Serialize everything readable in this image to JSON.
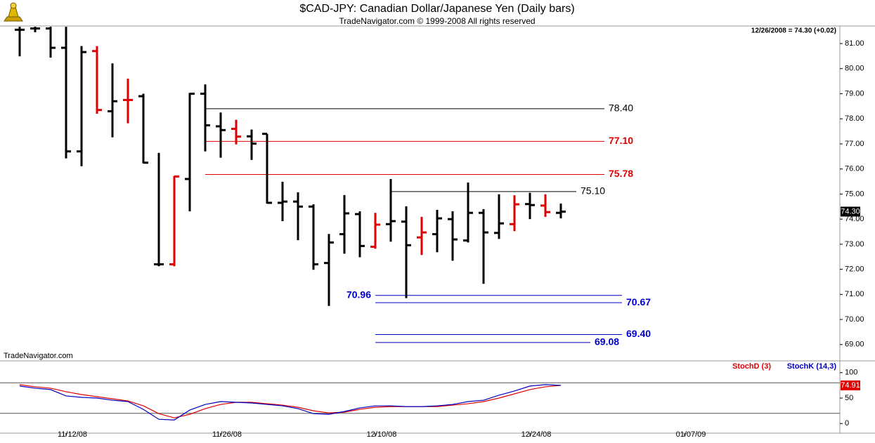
{
  "chart_data": [
    {
      "type": "ohlc",
      "title": "$CAD-JPY:  Canadian Dollar/Japanese Yen  (Daily bars)",
      "subtitle": "TradeNavigator.com © 1999-2008 All rights reserved",
      "watermark": "TradeNavigator.com",
      "status": "12/26/2008 = 74.30 (+0.02)",
      "open": [
        81.55,
        81.6,
        81.6,
        80.83,
        76.7,
        80.7,
        78.3,
        78.75,
        78.9,
        72.2,
        72.2,
        75.6,
        79.0,
        77.7,
        77.6,
        77.3,
        77.4,
        74.65,
        74.7,
        74.5,
        72.25,
        73.4,
        74.2,
        72.9,
        73.8,
        73.9,
        73.27,
        73.4,
        74.0,
        73.15,
        74.25,
        73.45,
        73.8,
        74.6,
        74.54,
        74.25,
        null,
        null,
        null,
        null,
        null,
        null,
        null,
        null,
        null
      ],
      "high": [
        81.67,
        81.67,
        81.67,
        81.67,
        80.9,
        80.9,
        80.21,
        79.6,
        79.0,
        76.64,
        75.72,
        79.03,
        79.37,
        78.25,
        77.96,
        77.57,
        77.4,
        75.49,
        75.07,
        74.59,
        73.41,
        74.96,
        74.31,
        74.25,
        75.6,
        74.51,
        74.09,
        74.37,
        74.31,
        75.46,
        74.4,
        74.99,
        74.95,
        75.05,
        74.99,
        74.62,
        null,
        null,
        null,
        null,
        null,
        null,
        null,
        null,
        null
      ],
      "low": [
        80.49,
        81.45,
        80.44,
        76.42,
        76.11,
        78.2,
        77.26,
        77.82,
        76.22,
        72.12,
        72.12,
        74.31,
        76.7,
        76.45,
        76.98,
        76.36,
        74.62,
        73.92,
        73.16,
        71.98,
        70.54,
        72.62,
        72.48,
        72.82,
        73.1,
        70.85,
        72.57,
        72.68,
        72.34,
        73.07,
        71.42,
        73.21,
        73.52,
        74.0,
        74.09,
        74.03,
        null,
        null,
        null,
        null,
        null,
        null,
        null,
        null,
        null
      ],
      "close": [
        81.55,
        81.6,
        80.83,
        76.7,
        80.66,
        78.35,
        78.7,
        78.75,
        76.25,
        72.2,
        75.7,
        79.0,
        77.74,
        77.55,
        77.29,
        77.01,
        74.65,
        74.7,
        74.5,
        72.2,
        73.07,
        74.23,
        72.93,
        73.78,
        73.92,
        72.96,
        73.47,
        74.03,
        73.19,
        74.25,
        73.47,
        73.83,
        74.59,
        74.56,
        74.28,
        74.3,
        null,
        null,
        null,
        null,
        null,
        null,
        null,
        null,
        null
      ],
      "colors": [
        "#000000",
        "#000000",
        "#000000",
        "#000000",
        "#000000",
        "#e00000",
        "#000000",
        "#e00000",
        "#000000",
        "#000000",
        "#e00000",
        "#000000",
        "#000000",
        "#000000",
        "#e00000",
        "#000000",
        "#000000",
        "#000000",
        "#000000",
        "#000000",
        "#000000",
        "#000000",
        "#000000",
        "#e00000",
        "#000000",
        "#000000",
        "#e00000",
        "#000000",
        "#000000",
        "#000000",
        "#000000",
        "#000000",
        "#e00000",
        "#000000",
        "#e00000",
        "#000000",
        null,
        null,
        null,
        null,
        null,
        null,
        null,
        null,
        null
      ],
      "ylim": [
        68.35,
        81.7
      ],
      "yticks": [
        {
          "value": 69,
          "label": "69.00"
        },
        {
          "value": 70,
          "label": "70.00"
        },
        {
          "value": 71,
          "label": "71.00"
        },
        {
          "value": 72,
          "label": "72.00"
        },
        {
          "value": 73,
          "label": "73.00"
        },
        {
          "value": 74,
          "label": "74.00"
        },
        {
          "value": 75,
          "label": "75.00"
        },
        {
          "value": 76,
          "label": "76.00"
        },
        {
          "value": 77,
          "label": "77.00"
        },
        {
          "value": 78,
          "label": "78.00"
        },
        {
          "value": 79,
          "label": "79.00"
        },
        {
          "value": 80,
          "label": "80.00"
        },
        {
          "value": 81,
          "label": "81.00"
        }
      ],
      "levels": [
        {
          "value": 78.4,
          "label": "78.40",
          "color": "#000000"
        },
        {
          "value": 77.1,
          "label": "77.10",
          "color": "#e00000"
        },
        {
          "value": 75.78,
          "label": "75.78",
          "color": "#e00000"
        },
        {
          "value": 75.1,
          "label": "75.10",
          "color": "#000000"
        },
        {
          "value": 70.96,
          "label": "70.96",
          "color": "#0000cc"
        },
        {
          "value": 70.67,
          "label": "70.67",
          "color": "#0000cc"
        },
        {
          "value": 69.4,
          "label": "69.40",
          "color": "#0000cc"
        },
        {
          "value": 69.08,
          "label": "69.08",
          "color": "#0000cc"
        }
      ],
      "last_price": {
        "value": 74.3,
        "label": "74.30"
      }
    },
    {
      "type": "line",
      "categories": [
        null,
        null,
        null,
        "11/12/08",
        null,
        null,
        null,
        null,
        null,
        null,
        null,
        null,
        null,
        "11/26/08",
        null,
        null,
        null,
        null,
        null,
        null,
        null,
        null,
        null,
        "12/10/08",
        null,
        null,
        null,
        null,
        null,
        null,
        null,
        null,
        null,
        "12/24/08",
        null,
        null,
        null,
        null,
        null,
        null,
        null,
        null,
        null,
        "01/07/09",
        null
      ],
      "series": [
        {
          "name": "StochD (3)",
          "color": "#e00000",
          "values": [
            76.4,
            72.2,
            69.4,
            62.5,
            56.9,
            52.8,
            48.6,
            44.4,
            34.7,
            19.4,
            11.1,
            18.1,
            29.2,
            37.5,
            41.7,
            41.7,
            38.9,
            36.1,
            31.9,
            25,
            20.8,
            22.2,
            27.8,
            31.9,
            33.3,
            33.3,
            33.3,
            33.3,
            36.1,
            38.9,
            43.1,
            50,
            58.3,
            66.7,
            72.2,
            74.91,
            null,
            null,
            null,
            null,
            null,
            null,
            null,
            null,
            null
          ]
        },
        {
          "name": "StochK (14,3)",
          "color": "#0000c0",
          "values": [
            73.6,
            69.4,
            66.7,
            54.2,
            51.4,
            50,
            45.8,
            43.1,
            27.8,
            8.3,
            6.9,
            26.4,
            37.5,
            43.1,
            41.7,
            40.3,
            37.5,
            34.7,
            29.2,
            19.4,
            18.1,
            23.6,
            30.6,
            34.7,
            34.7,
            33.3,
            33.3,
            34.7,
            37.5,
            43.1,
            45.8,
            55.6,
            63.9,
            73.6,
            76.4,
            75,
            null,
            null,
            null,
            null,
            null,
            null,
            null,
            null,
            null
          ]
        }
      ],
      "ylim": [
        -19,
        119
      ],
      "yticks": [
        0,
        50,
        100
      ],
      "ref_lines": [
        20,
        80
      ],
      "last_value": {
        "value": 74.91,
        "label": "74.91"
      }
    }
  ]
}
